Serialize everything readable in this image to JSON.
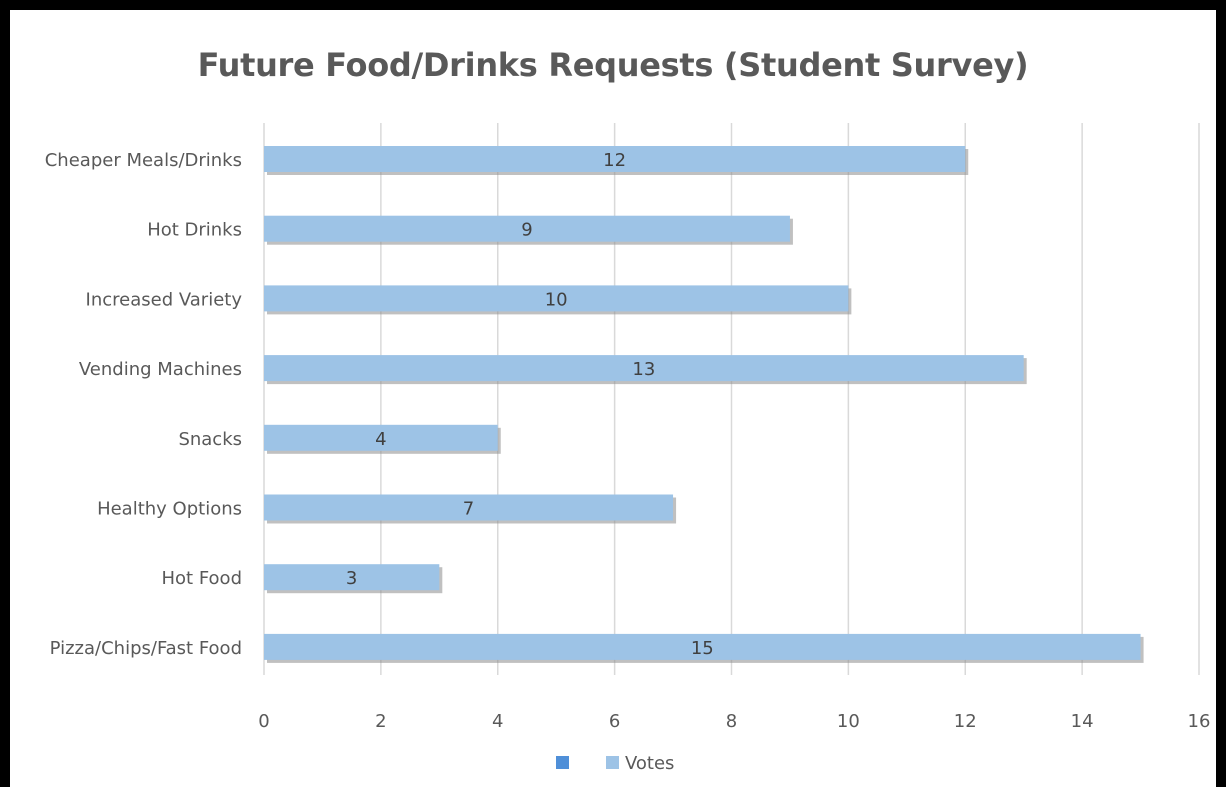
{
  "chart_data": {
    "type": "bar",
    "orientation": "horizontal",
    "title": "Future Food/Drinks Requests (Student Survey)",
    "categories": [
      "Cheaper Meals/Drinks",
      "Hot Drinks",
      "Increased Variety",
      "Vending Machines",
      "Snacks",
      "Healthy Options",
      "Hot Food",
      "Pizza/Chips/Fast Food"
    ],
    "series": [
      {
        "name": "Votes",
        "values": [
          12,
          9,
          10,
          13,
          4,
          7,
          3,
          15
        ],
        "color": "#9dc3e6"
      }
    ],
    "data_labels": [
      "12",
      "9",
      "10",
      "13",
      "4",
      "7",
      "3",
      "15"
    ],
    "x_ticks": [
      "0",
      "2",
      "4",
      "6",
      "8",
      "10",
      "12",
      "14",
      "16"
    ],
    "xlim": [
      0,
      16
    ],
    "grid": true,
    "legend_position": "bottom",
    "legend_entries": [
      {
        "label": "",
        "color": "#4f8fd8"
      },
      {
        "label": "Votes",
        "color": "#9dc3e6"
      }
    ],
    "colors": {
      "title": "#595959",
      "text": "#595959",
      "grid": "#d9d9d9",
      "frame": "#000000",
      "background": "#ffffff"
    }
  }
}
